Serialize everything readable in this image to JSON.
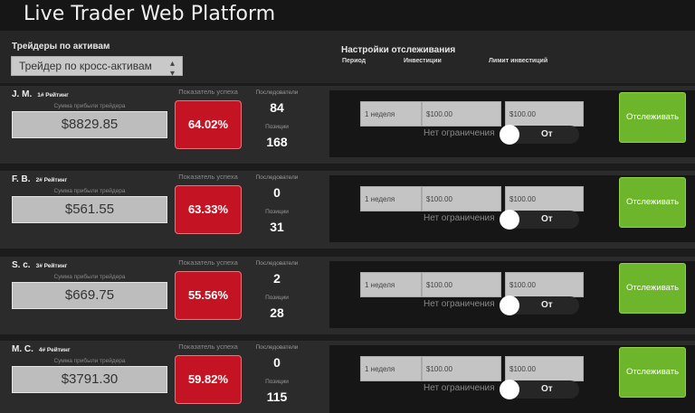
{
  "app": {
    "title": "Live Trader Web Platform"
  },
  "filter": {
    "label": "Трейдеры по активам",
    "selected": "Трейдер по кросс-активам"
  },
  "tracking": {
    "heading": "Настройки отслеживания",
    "columns": {
      "period": "Период",
      "investments": "Инвестиции",
      "limit": "Лимит инвестиций"
    }
  },
  "labels": {
    "profit": "Сумма прибыли трейдера",
    "success": "Показатель успеха",
    "followers": "Последователи",
    "positions": "Позиции",
    "no_limit": "Нет ограничения",
    "toggle_state": "От",
    "follow": "Отслеживать"
  },
  "traders": [
    {
      "name": "J. M.",
      "rank": "1# Рейтинг",
      "profit": "$8829.85",
      "success": "64.02%",
      "followers": "84",
      "positions": "168",
      "period": "1 неделя",
      "investment": "$100.00",
      "limit": "$100.00"
    },
    {
      "name": "F. B.",
      "rank": "2# Рейтинг",
      "profit": "$561.55",
      "success": "63.33%",
      "followers": "0",
      "positions": "31",
      "period": "1 неделя",
      "investment": "$100.00",
      "limit": "$100.00"
    },
    {
      "name": "S. c.",
      "rank": "3# Рейтинг",
      "profit": "$669.75",
      "success": "55.56%",
      "followers": "2",
      "positions": "28",
      "period": "1 неделя",
      "investment": "$100.00",
      "limit": "$100.00"
    },
    {
      "name": "M. C.",
      "rank": "4# Рейтинг",
      "profit": "$3791.30",
      "success": "59.82%",
      "followers": "0",
      "positions": "115",
      "period": "1 неделя",
      "investment": "$100.00",
      "limit": "$100.00"
    }
  ],
  "colors": {
    "success_red": "#c41424",
    "follow_green": "#6db52a",
    "background": "#1c1c1c"
  },
  "icons": {
    "select_chevron": "up-down-chevron-icon"
  }
}
